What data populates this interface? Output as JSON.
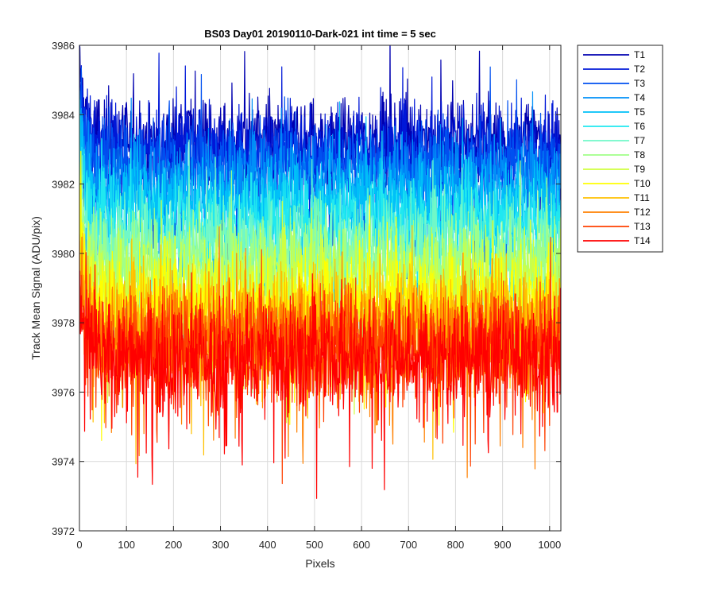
{
  "chart_data": {
    "type": "line",
    "title": "BS03 Day01 20190110-Dark-021 int time = 5 sec",
    "xlabel": "Pixels",
    "ylabel": "Track Mean Signal (ADU/pix)",
    "xlim": [
      0,
      1024
    ],
    "ylim": [
      3972,
      3986
    ],
    "xticks": [
      0,
      100,
      200,
      300,
      400,
      500,
      600,
      700,
      800,
      900,
      1000
    ],
    "yticks": [
      3972,
      3974,
      3976,
      3978,
      3980,
      3982,
      3984,
      3986
    ],
    "grid": true,
    "legend_position": "outside-right-top",
    "n_points": 1024,
    "series": [
      {
        "name": "T1",
        "color": "#0000b0",
        "mean": 3983.3,
        "noise": 0.6,
        "start": 3985.5
      },
      {
        "name": "T2",
        "color": "#0018d8",
        "mean": 3983.0,
        "noise": 0.6,
        "start": 3985.2
      },
      {
        "name": "T3",
        "color": "#0050f0",
        "mean": 3982.6,
        "noise": 0.6,
        "start": 3984.8
      },
      {
        "name": "T4",
        "color": "#0090f8",
        "mean": 3982.1,
        "noise": 0.6,
        "start": 3984.2
      },
      {
        "name": "T5",
        "color": "#00c0f8",
        "mean": 3981.5,
        "noise": 0.65,
        "start": 3983.6
      },
      {
        "name": "T6",
        "color": "#20e8f0",
        "mean": 3980.9,
        "noise": 0.65,
        "start": 3983.0
      },
      {
        "name": "T7",
        "color": "#70f8c8",
        "mean": 3980.3,
        "noise": 0.7,
        "start": 3982.4
      },
      {
        "name": "T8",
        "color": "#a0ff88",
        "mean": 3979.7,
        "noise": 0.7,
        "start": 3981.8
      },
      {
        "name": "T9",
        "color": "#d0ff40",
        "mean": 3979.1,
        "noise": 0.75,
        "start": 3981.2
      },
      {
        "name": "T10",
        "color": "#ffff00",
        "mean": 3978.5,
        "noise": 0.8,
        "start": 3980.6
      },
      {
        "name": "T11",
        "color": "#ffc000",
        "mean": 3978.0,
        "noise": 0.8,
        "start": 3980.0
      },
      {
        "name": "T12",
        "color": "#ff8000",
        "mean": 3977.6,
        "noise": 0.8,
        "start": 3979.6
      },
      {
        "name": "T13",
        "color": "#ff4000",
        "mean": 3977.3,
        "noise": 0.8,
        "start": 3979.3
      },
      {
        "name": "T14",
        "color": "#ff0000",
        "mean": 3977.0,
        "noise": 0.8,
        "start": 3979.0
      }
    ]
  }
}
